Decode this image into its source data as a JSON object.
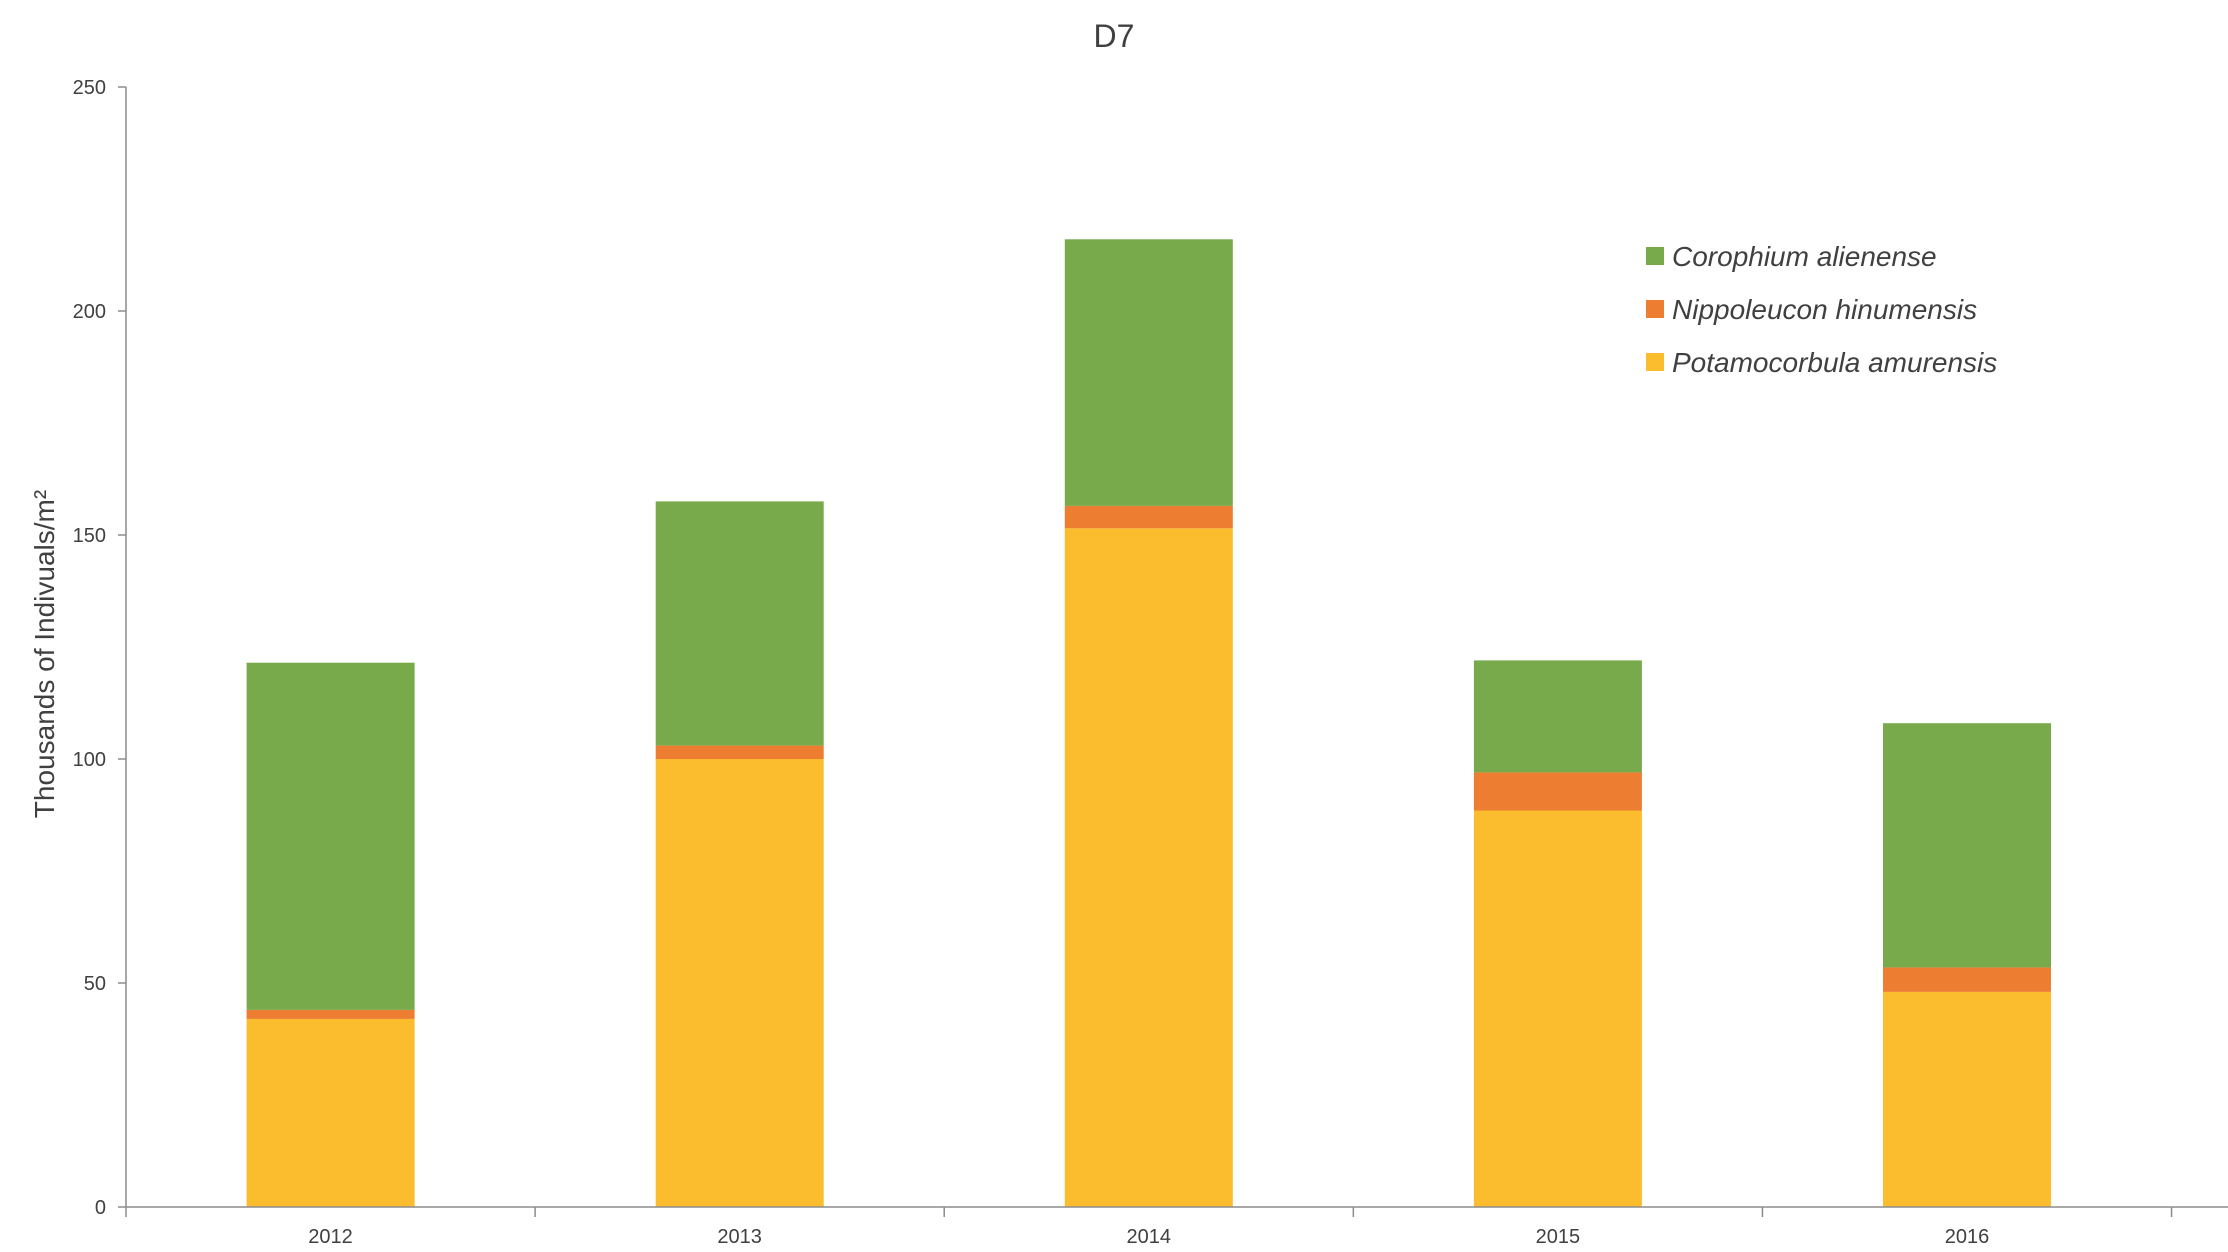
{
  "chart_data": {
    "type": "bar",
    "stacked": true,
    "title": "D7",
    "xlabel": "",
    "ylabel": "Thousands of Indivuals/m²",
    "ylim": [
      0,
      250
    ],
    "yticks": [
      0,
      50,
      100,
      150,
      200,
      250
    ],
    "categories": [
      "2012",
      "2013",
      "2014",
      "2015",
      "2016"
    ],
    "series": [
      {
        "name": "Potamocorbula amurensis",
        "color": "#FBBC2E",
        "values": [
          42,
          100,
          151.5,
          88.5,
          48
        ]
      },
      {
        "name": "Nippoleucon hinumensis",
        "color": "#ED7D31",
        "values": [
          2,
          3,
          5,
          8.5,
          5.5
        ]
      },
      {
        "name": "Corophium alienense",
        "color": "#78AA4C",
        "values": [
          77.5,
          54.5,
          59.5,
          25,
          54.5
        ]
      }
    ],
    "legend": {
      "position": "top-right",
      "order": [
        "Corophium alienense",
        "Nippoleucon hinumensis",
        "Potamocorbula amurensis"
      ]
    },
    "grid": false
  }
}
